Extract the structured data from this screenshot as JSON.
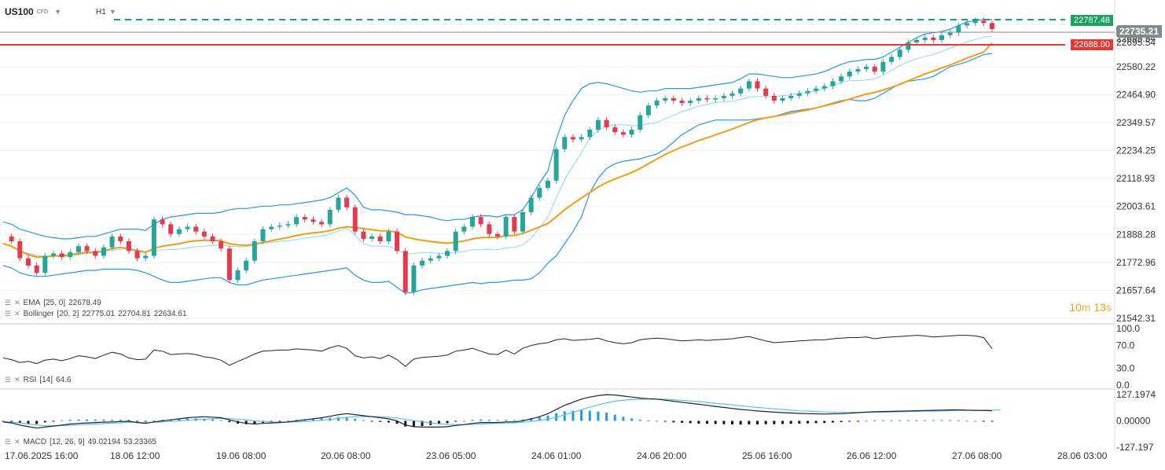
{
  "symbol": {
    "name": "US100",
    "type": "CFD",
    "timeframe": "H1"
  },
  "countdown": {
    "min": "10",
    "min_unit": "m",
    "sec": "13",
    "sec_unit": "s"
  },
  "price_lines": {
    "resistance": {
      "value": "22787.48",
      "color": "#1aa260"
    },
    "current": {
      "value": "22735.21",
      "color": "#888888"
    },
    "support": {
      "value": "22688.00",
      "color": "#e53935"
    },
    "overlap_label": "22695.54"
  },
  "indicators": {
    "ema": {
      "label": "EMA",
      "params": "[25, 0]",
      "value": "22678.49"
    },
    "bollinger": {
      "label": "Bollinger",
      "params": "[20, 2]",
      "upper": "22775.01",
      "mid": "22704.81",
      "lower": "22634.61"
    },
    "rsi": {
      "label": "RSI",
      "params": "[14]",
      "value": "64.6"
    },
    "macd": {
      "label": "MACD",
      "params": "[12, 26, 9]",
      "macd": "49.02194",
      "signal": "53.23365"
    }
  },
  "chart_data": [
    {
      "type": "line",
      "title": "US100 H1 price",
      "y_ticks": [
        "22695.54",
        "22580.22",
        "22464.90",
        "22349.57",
        "22234.25",
        "22118.93",
        "22003.61",
        "21888.28",
        "21772.96",
        "21657.64",
        "21542.31"
      ],
      "ylim": [
        21542.31,
        22800
      ],
      "x_ticks": [
        "17.06.2025 16:00",
        "18.06 12:00",
        "19.06 08:00",
        "20.06 08:00",
        "23.06 05:00",
        "24.06 01:00",
        "24.06 20:00",
        "25.06 16:00",
        "26.06 12:00",
        "27.06 08:00",
        "28.06 03:00"
      ],
      "series": [
        {
          "name": "Close",
          "color": "#26a69a",
          "values": [
            21880,
            21860,
            21790,
            21760,
            21730,
            21800,
            21810,
            21795,
            21815,
            21840,
            21820,
            21800,
            21835,
            21880,
            21860,
            21820,
            21790,
            21800,
            21950,
            21930,
            21890,
            21910,
            21920,
            21900,
            21880,
            21860,
            21830,
            21700,
            21740,
            21780,
            21860,
            21910,
            21920,
            21925,
            21930,
            21960,
            21950,
            21940,
            21930,
            21990,
            22040,
            22000,
            21900,
            21870,
            21880,
            21860,
            21900,
            21820,
            21650,
            21760,
            21780,
            21790,
            21800,
            21820,
            21900,
            21920,
            21960,
            21930,
            21890,
            21880,
            21960,
            21900,
            21980,
            22040,
            22080,
            22110,
            22240,
            22290,
            22280,
            22290,
            22320,
            22360,
            22330,
            22310,
            22300,
            22320,
            22380,
            22420,
            22440,
            22450,
            22440,
            22430,
            22440,
            22450,
            22445,
            22450,
            22460,
            22470,
            22490,
            22520,
            22490,
            22460,
            22440,
            22450,
            22460,
            22470,
            22480,
            22490,
            22500,
            22520,
            22540,
            22560,
            22570,
            22580,
            22560,
            22600,
            22620,
            22650,
            22680,
            22690,
            22700,
            22690,
            22710,
            22720,
            22750,
            22760,
            22770,
            22760,
            22735.21
          ]
        },
        {
          "name": "EMA [25, 0]",
          "color": "#f39c12",
          "values": [
            21850,
            21840,
            21820,
            21805,
            21795,
            21795,
            21800,
            21800,
            21805,
            21810,
            21815,
            21815,
            21820,
            21830,
            21835,
            21830,
            21820,
            21815,
            21830,
            21840,
            21845,
            21850,
            21858,
            21862,
            21864,
            21864,
            21862,
            21850,
            21845,
            21843,
            21848,
            21855,
            21862,
            21869,
            21876,
            21884,
            21890,
            21895,
            21898,
            21904,
            21914,
            21920,
            21917,
            21912,
            21908,
            21903,
            21903,
            21897,
            21878,
            21870,
            21864,
            21859,
            21855,
            21852,
            21856,
            21861,
            21870,
            21875,
            21876,
            21876,
            21883,
            21884,
            21892,
            21905,
            21919,
            21934,
            21961,
            21990,
            22015,
            22038,
            22061,
            22084,
            22102,
            22117,
            22130,
            22144,
            22160,
            22180,
            22199,
            22218,
            22234,
            22249,
            22262,
            22276,
            22287,
            22299,
            22311,
            22323,
            22336,
            22350,
            22361,
            22369,
            22375,
            22381,
            22388,
            22395,
            22402,
            22410,
            22418,
            22427,
            22436,
            22447,
            22457,
            22467,
            22474,
            22484,
            22495,
            22507,
            22522,
            22536,
            22550,
            22562,
            22575,
            22587,
            22601,
            22615,
            22628,
            22640,
            22678.49
          ]
        },
        {
          "name": "Bollinger upper",
          "color": "#2196f3",
          "values": [
            21940,
            21930,
            21910,
            21900,
            21890,
            21880,
            21875,
            21870,
            21870,
            21875,
            21880,
            21880,
            21890,
            21900,
            21910,
            21910,
            21910,
            21905,
            21930,
            21950,
            21960,
            21965,
            21970,
            21975,
            21975,
            21975,
            21980,
            21990,
            21995,
            21995,
            22000,
            22005,
            22005,
            22010,
            22010,
            22015,
            22020,
            22025,
            22030,
            22040,
            22060,
            22080,
            22050,
            22000,
            21990,
            21990,
            21985,
            21980,
            21970,
            21970,
            21965,
            21960,
            21950,
            21945,
            21950,
            21950,
            21960,
            21965,
            21965,
            21960,
            21970,
            21970,
            21990,
            22040,
            22100,
            22150,
            22280,
            22380,
            22440,
            22490,
            22510,
            22515,
            22510,
            22500,
            22490,
            22480,
            22475,
            22480,
            22480,
            22490,
            22490,
            22490,
            22490,
            22495,
            22500,
            22505,
            22510,
            22515,
            22530,
            22550,
            22550,
            22545,
            22540,
            22535,
            22535,
            22540,
            22545,
            22550,
            22560,
            22575,
            22590,
            22600,
            22605,
            22610,
            22610,
            22620,
            22640,
            22660,
            22680,
            22700,
            22715,
            22720,
            22725,
            22735,
            22750,
            22765,
            22770,
            22775,
            22775.01
          ]
        },
        {
          "name": "Bollinger lower",
          "color": "#2196f3",
          "values": [
            21760,
            21750,
            21730,
            21720,
            21715,
            21715,
            21720,
            21725,
            21730,
            21735,
            21740,
            21740,
            21745,
            21745,
            21745,
            21745,
            21740,
            21730,
            21715,
            21700,
            21690,
            21690,
            21695,
            21700,
            21705,
            21710,
            21710,
            21690,
            21680,
            21680,
            21690,
            21700,
            21705,
            21710,
            21715,
            21720,
            21725,
            21730,
            21735,
            21740,
            21745,
            21750,
            21720,
            21700,
            21690,
            21690,
            21695,
            21670,
            21645,
            21650,
            21660,
            21665,
            21670,
            21675,
            21680,
            21685,
            21690,
            21685,
            21690,
            21690,
            21695,
            21700,
            21700,
            21705,
            21730,
            21770,
            21800,
            21850,
            21900,
            21960,
            22060,
            22120,
            22160,
            22180,
            22190,
            22195,
            22200,
            22210,
            22220,
            22240,
            22270,
            22300,
            22320,
            22340,
            22350,
            22360,
            22360,
            22360,
            22360,
            22360,
            22365,
            22370,
            22375,
            22385,
            22395,
            22400,
            22405,
            22410,
            22420,
            22430,
            22440,
            22445,
            22440,
            22440,
            22450,
            22470,
            22490,
            22510,
            22520,
            22525,
            22530,
            22540,
            22560,
            22580,
            22590,
            22600,
            22615,
            22630,
            22634.61
          ]
        }
      ]
    },
    {
      "type": "line",
      "title": "RSI [14]",
      "y_ticks": [
        "100.0",
        "70.0",
        "30.0",
        "0.0"
      ],
      "ylim": [
        0,
        100
      ],
      "series": [
        {
          "name": "RSI",
          "color": "#222222",
          "values": [
            48,
            45,
            40,
            42,
            38,
            44,
            46,
            43,
            47,
            52,
            50,
            47,
            53,
            58,
            55,
            48,
            45,
            46,
            62,
            60,
            54,
            55,
            56,
            54,
            50,
            48,
            44,
            35,
            42,
            48,
            55,
            60,
            61,
            62,
            62,
            64,
            63,
            62,
            60,
            66,
            70,
            65,
            52,
            48,
            50,
            47,
            53,
            45,
            33,
            46,
            49,
            50,
            51,
            53,
            60,
            62,
            65,
            60,
            55,
            54,
            62,
            55,
            65,
            70,
            73,
            75,
            80,
            82,
            79,
            80,
            81,
            83,
            78,
            75,
            73,
            75,
            80,
            82,
            83,
            82,
            80,
            78,
            79,
            80,
            79,
            80,
            81,
            82,
            84,
            86,
            82,
            78,
            75,
            76,
            77,
            78,
            79,
            80,
            80,
            82,
            83,
            84,
            84,
            85,
            82,
            84,
            85,
            86,
            87,
            88,
            87,
            85,
            86,
            87,
            88,
            88,
            87,
            84,
            64.6
          ]
        }
      ]
    },
    {
      "type": "bar",
      "title": "MACD [12, 26, 9]",
      "y_ticks": [
        "127.1974",
        "0.00000",
        "-127.197"
      ],
      "ylim": [
        -127.197,
        127.1974
      ],
      "series": [
        {
          "name": "MACD",
          "color": "#222222",
          "values": [
            -5,
            -10,
            -20,
            -28,
            -35,
            -30,
            -25,
            -20,
            -15,
            -12,
            -10,
            -8,
            -6,
            -5,
            -3,
            -2,
            -8,
            -12,
            -5,
            0,
            5,
            10,
            15,
            18,
            20,
            18,
            15,
            5,
            -5,
            -12,
            -15,
            -12,
            -10,
            -8,
            -5,
            0,
            5,
            10,
            15,
            22,
            30,
            35,
            30,
            25,
            20,
            15,
            10,
            0,
            -20,
            -28,
            -30,
            -30,
            -30,
            -28,
            -22,
            -18,
            -12,
            -8,
            -8,
            -8,
            -5,
            -5,
            0,
            10,
            20,
            35,
            55,
            75,
            90,
            105,
            115,
            122,
            127,
            125,
            120,
            115,
            110,
            107,
            105,
            100,
            95,
            90,
            85,
            80,
            75,
            70,
            65,
            60,
            55,
            52,
            48,
            45,
            42,
            40,
            38,
            36,
            35,
            34,
            33,
            34,
            35,
            37,
            40,
            42,
            44,
            45,
            46,
            47,
            48,
            49,
            50,
            51,
            52,
            53,
            53,
            52,
            51,
            50,
            49.02
          ]
        },
        {
          "name": "Signal",
          "color": "#4fc3f7",
          "values": [
            -3,
            -6,
            -10,
            -15,
            -20,
            -23,
            -24,
            -23,
            -21,
            -19,
            -17,
            -15,
            -13,
            -11,
            -9,
            -7,
            -7,
            -8,
            -7,
            -5,
            -3,
            0,
            3,
            6,
            9,
            11,
            12,
            11,
            8,
            4,
            0,
            -3,
            -5,
            -6,
            -6,
            -5,
            -3,
            0,
            3,
            7,
            12,
            17,
            20,
            21,
            21,
            20,
            18,
            14,
            7,
            1,
            -5,
            -10,
            -14,
            -17,
            -18,
            -18,
            -17,
            -15,
            -13,
            -12,
            -10,
            -9,
            -7,
            -3,
            2,
            9,
            18,
            29,
            41,
            54,
            66,
            77,
            87,
            95,
            100,
            103,
            104,
            105,
            105,
            104,
            102,
            99,
            96,
            93,
            89,
            85,
            81,
            77,
            73,
            69,
            65,
            61,
            58,
            55,
            52,
            49,
            47,
            45,
            43,
            42,
            41,
            41,
            41,
            41,
            42,
            42,
            43,
            44,
            45,
            46,
            47,
            47,
            48,
            49,
            50,
            51,
            51,
            52,
            52,
            53.23
          ]
        }
      ]
    }
  ]
}
